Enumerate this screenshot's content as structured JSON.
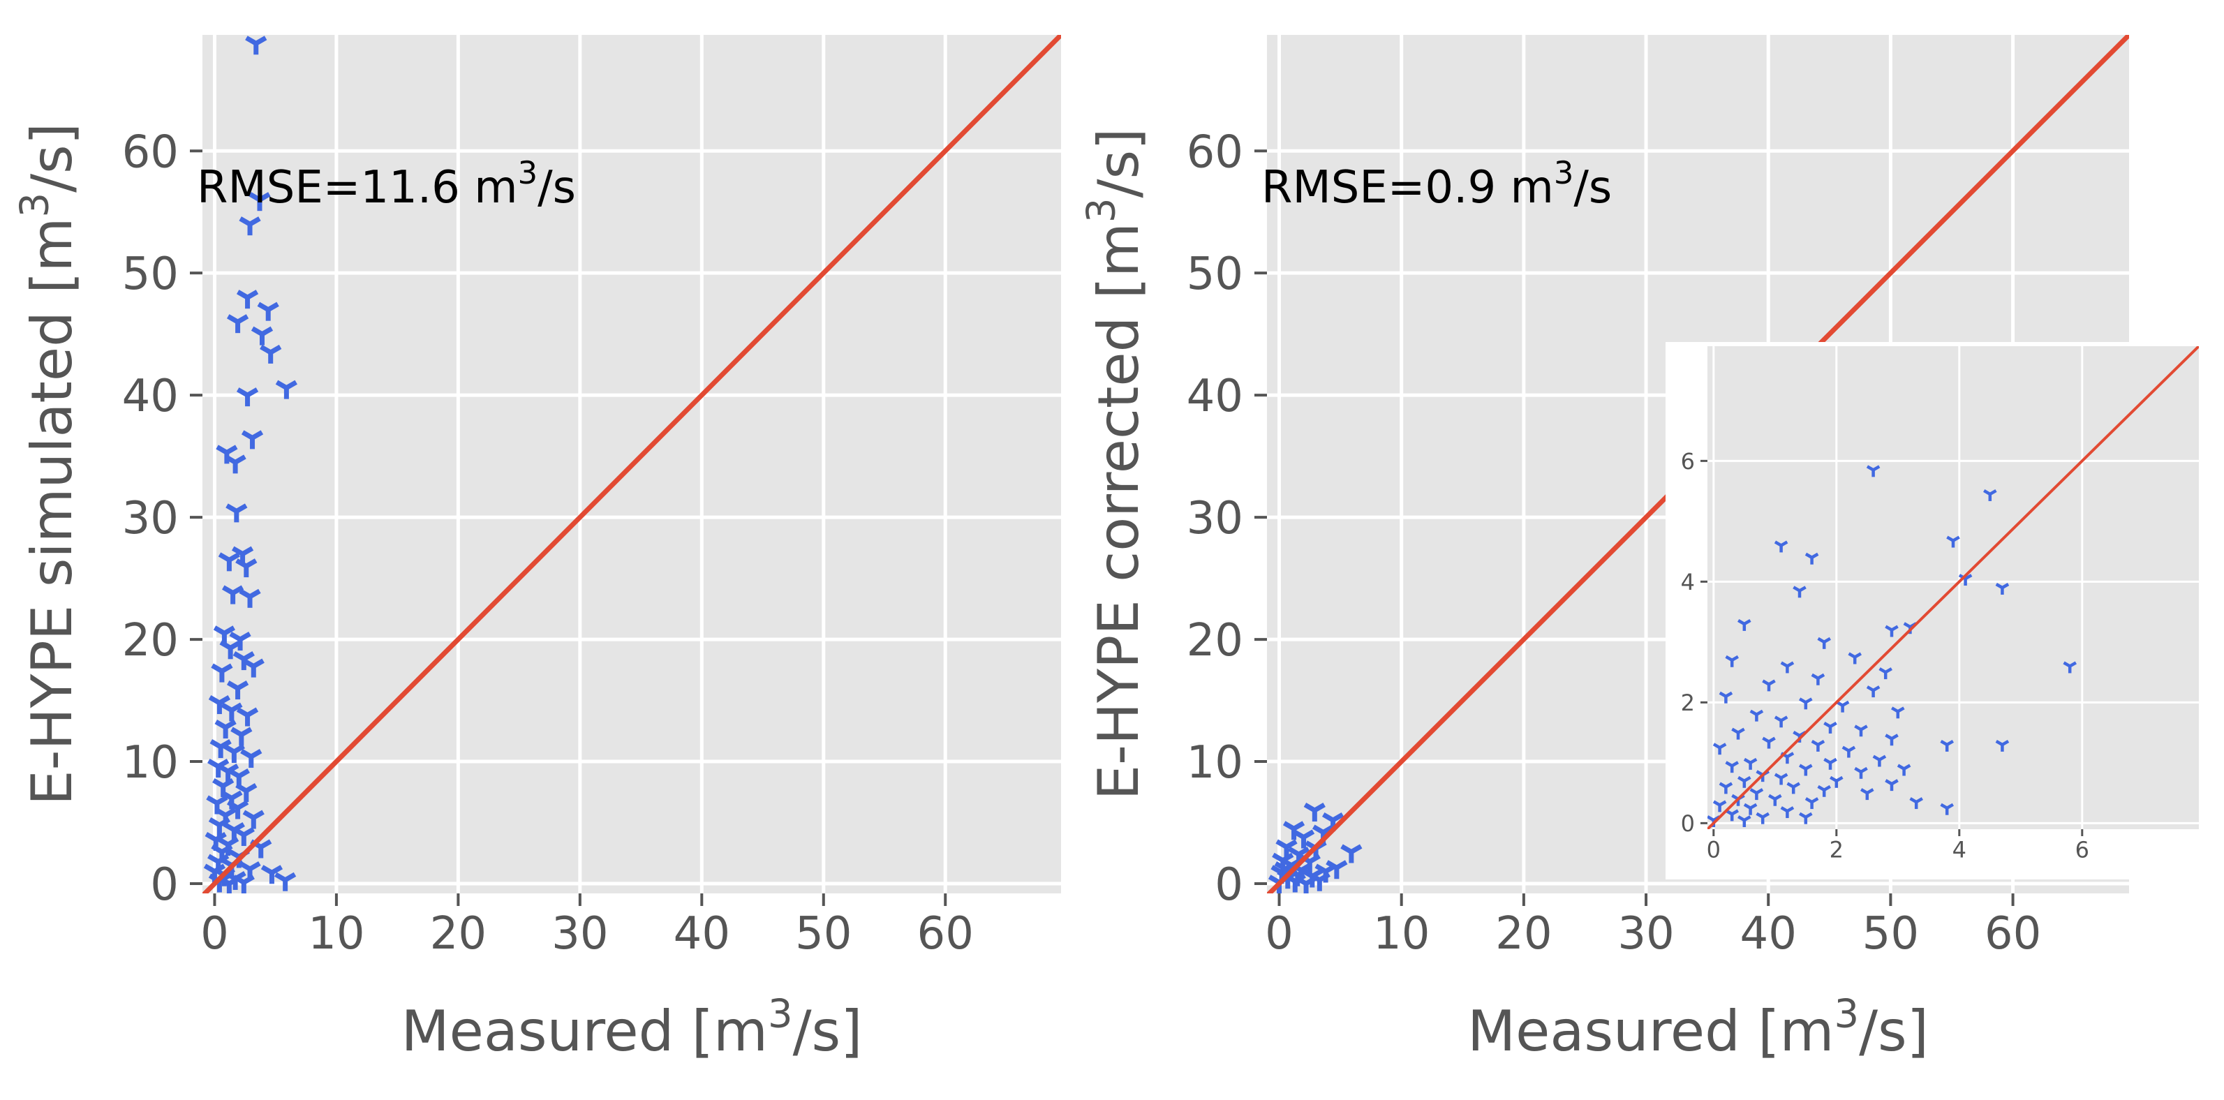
{
  "chart_data": [
    {
      "type": "scatter",
      "xlabel": "Measured [m³/s]",
      "ylabel": "E-HYPE simulated [m³/s]",
      "annotation": "RMSE=11.6 m³/s",
      "xlim": [
        -1,
        69.5
      ],
      "ylim": [
        -0.8,
        69.5
      ],
      "xticks": [
        0,
        10,
        20,
        30,
        40,
        50,
        60
      ],
      "yticks": [
        0,
        10,
        20,
        30,
        40,
        50,
        60
      ],
      "grid": true,
      "reference_line": {
        "x": [
          -1,
          69.5
        ],
        "y": [
          -1,
          69.5
        ],
        "color": "#E24A33"
      },
      "marker_color": "#4169E1",
      "points": [
        {
          "x": 3.4,
          "y": 68.8
        },
        {
          "x": 3.7,
          "y": 56.0
        },
        {
          "x": 2.9,
          "y": 54.0
        },
        {
          "x": 2.7,
          "y": 48.0
        },
        {
          "x": 4.4,
          "y": 47.0
        },
        {
          "x": 1.9,
          "y": 46.0
        },
        {
          "x": 3.9,
          "y": 45.0
        },
        {
          "x": 4.6,
          "y": 43.5
        },
        {
          "x": 5.9,
          "y": 40.6
        },
        {
          "x": 2.7,
          "y": 40.0
        },
        {
          "x": 3.1,
          "y": 36.5
        },
        {
          "x": 1.0,
          "y": 35.3
        },
        {
          "x": 1.7,
          "y": 34.5
        },
        {
          "x": 1.8,
          "y": 30.5
        },
        {
          "x": 2.3,
          "y": 27.0
        },
        {
          "x": 1.2,
          "y": 26.5
        },
        {
          "x": 2.6,
          "y": 26.0
        },
        {
          "x": 1.5,
          "y": 23.8
        },
        {
          "x": 2.9,
          "y": 23.5
        },
        {
          "x": 0.8,
          "y": 20.5
        },
        {
          "x": 2.1,
          "y": 20.0
        },
        {
          "x": 1.3,
          "y": 19.3
        },
        {
          "x": 2.4,
          "y": 18.4
        },
        {
          "x": 0.6,
          "y": 17.4
        },
        {
          "x": 3.2,
          "y": 17.8
        },
        {
          "x": 1.9,
          "y": 16.0
        },
        {
          "x": 0.4,
          "y": 14.8
        },
        {
          "x": 1.4,
          "y": 14.2
        },
        {
          "x": 2.7,
          "y": 13.8
        },
        {
          "x": 0.9,
          "y": 12.8
        },
        {
          "x": 2.2,
          "y": 12.2
        },
        {
          "x": 0.5,
          "y": 11.2
        },
        {
          "x": 1.6,
          "y": 10.8
        },
        {
          "x": 3.0,
          "y": 10.4
        },
        {
          "x": 0.3,
          "y": 9.6
        },
        {
          "x": 1.1,
          "y": 9.2
        },
        {
          "x": 2.0,
          "y": 8.8
        },
        {
          "x": 0.7,
          "y": 8.0
        },
        {
          "x": 2.6,
          "y": 7.6
        },
        {
          "x": 1.4,
          "y": 7.0
        },
        {
          "x": 0.2,
          "y": 6.6
        },
        {
          "x": 1.9,
          "y": 6.2
        },
        {
          "x": 0.9,
          "y": 5.6
        },
        {
          "x": 3.2,
          "y": 5.4
        },
        {
          "x": 0.4,
          "y": 4.8
        },
        {
          "x": 1.6,
          "y": 4.4
        },
        {
          "x": 2.4,
          "y": 4.0
        },
        {
          "x": 0.1,
          "y": 3.6
        },
        {
          "x": 1.1,
          "y": 3.2
        },
        {
          "x": 3.8,
          "y": 3.0
        },
        {
          "x": 0.6,
          "y": 2.6
        },
        {
          "x": 2.0,
          "y": 2.2
        },
        {
          "x": 0.3,
          "y": 1.8
        },
        {
          "x": 1.4,
          "y": 1.5
        },
        {
          "x": 2.9,
          "y": 1.2
        },
        {
          "x": 0.0,
          "y": 1.0
        },
        {
          "x": 0.8,
          "y": 0.7
        },
        {
          "x": 4.7,
          "y": 0.9
        },
        {
          "x": 1.7,
          "y": 0.4
        },
        {
          "x": 0.4,
          "y": 0.2
        },
        {
          "x": 5.8,
          "y": 0.3
        },
        {
          "x": 2.4,
          "y": 0.1
        },
        {
          "x": 1.2,
          "y": 0.0
        }
      ]
    },
    {
      "type": "scatter",
      "xlabel": "Measured [m³/s]",
      "ylabel": "E-HYPE corrected [m³/s]",
      "annotation": "RMSE=0.9 m³/s",
      "xlim": [
        -1,
        69.5
      ],
      "ylim": [
        -0.8,
        69.5
      ],
      "xticks": [
        0,
        10,
        20,
        30,
        40,
        50,
        60
      ],
      "yticks": [
        0,
        10,
        20,
        30,
        40,
        50,
        60
      ],
      "grid": true,
      "reference_line": {
        "x": [
          -1,
          69.5
        ],
        "y": [
          -1,
          69.5
        ],
        "color": "#E24A33"
      },
      "marker_color": "#4169E1",
      "points": [
        {
          "x": 2.9,
          "y": 6.0
        },
        {
          "x": 4.4,
          "y": 5.2
        },
        {
          "x": 1.2,
          "y": 4.5
        },
        {
          "x": 3.6,
          "y": 4.2
        },
        {
          "x": 5.9,
          "y": 2.6
        },
        {
          "x": 2.0,
          "y": 3.8
        },
        {
          "x": 0.6,
          "y": 3.0
        },
        {
          "x": 3.0,
          "y": 2.9
        },
        {
          "x": 4.7,
          "y": 1.3
        },
        {
          "x": 1.6,
          "y": 2.4
        },
        {
          "x": 0.3,
          "y": 1.9
        },
        {
          "x": 2.5,
          "y": 1.8
        },
        {
          "x": 1.0,
          "y": 1.5
        },
        {
          "x": 3.8,
          "y": 1.0
        },
        {
          "x": 0.2,
          "y": 0.9
        },
        {
          "x": 1.8,
          "y": 1.1
        },
        {
          "x": 2.7,
          "y": 0.6
        },
        {
          "x": 0.7,
          "y": 0.5
        },
        {
          "x": 3.3,
          "y": 0.3
        },
        {
          "x": 1.3,
          "y": 0.2
        },
        {
          "x": 0.0,
          "y": 0.1
        },
        {
          "x": 2.2,
          "y": 0.0
        },
        {
          "x": 0.5,
          "y": 1.2
        },
        {
          "x": 1.5,
          "y": 0.7
        }
      ],
      "inset": {
        "xlim": [
          -0.1,
          7.9
        ],
        "ylim": [
          -0.1,
          7.9
        ],
        "xticks": [
          0,
          2,
          4,
          6
        ],
        "yticks": [
          0,
          2,
          4,
          6
        ],
        "grid": true,
        "points": [
          {
            "x": 2.6,
            "y": 5.85
          },
          {
            "x": 4.5,
            "y": 5.45
          },
          {
            "x": 3.9,
            "y": 4.68
          },
          {
            "x": 1.1,
            "y": 4.6
          },
          {
            "x": 1.6,
            "y": 4.4
          },
          {
            "x": 4.1,
            "y": 4.05
          },
          {
            "x": 4.7,
            "y": 3.9
          },
          {
            "x": 1.4,
            "y": 3.85
          },
          {
            "x": 0.5,
            "y": 3.3
          },
          {
            "x": 2.9,
            "y": 3.2
          },
          {
            "x": 3.2,
            "y": 3.25
          },
          {
            "x": 1.8,
            "y": 3.0
          },
          {
            "x": 2.3,
            "y": 2.75
          },
          {
            "x": 5.8,
            "y": 2.6
          },
          {
            "x": 0.3,
            "y": 2.7
          },
          {
            "x": 1.2,
            "y": 2.6
          },
          {
            "x": 2.8,
            "y": 2.5
          },
          {
            "x": 1.7,
            "y": 2.4
          },
          {
            "x": 0.9,
            "y": 2.3
          },
          {
            "x": 2.6,
            "y": 2.2
          },
          {
            "x": 0.2,
            "y": 2.1
          },
          {
            "x": 1.5,
            "y": 2.0
          },
          {
            "x": 2.1,
            "y": 1.95
          },
          {
            "x": 3.0,
            "y": 1.85
          },
          {
            "x": 0.7,
            "y": 1.8
          },
          {
            "x": 1.1,
            "y": 1.7
          },
          {
            "x": 1.9,
            "y": 1.6
          },
          {
            "x": 2.4,
            "y": 1.55
          },
          {
            "x": 0.4,
            "y": 1.5
          },
          {
            "x": 1.4,
            "y": 1.45
          },
          {
            "x": 2.9,
            "y": 1.4
          },
          {
            "x": 0.9,
            "y": 1.35
          },
          {
            "x": 1.7,
            "y": 1.3
          },
          {
            "x": 3.8,
            "y": 1.3
          },
          {
            "x": 4.7,
            "y": 1.3
          },
          {
            "x": 0.1,
            "y": 1.25
          },
          {
            "x": 2.2,
            "y": 1.2
          },
          {
            "x": 1.2,
            "y": 1.1
          },
          {
            "x": 2.7,
            "y": 1.05
          },
          {
            "x": 0.6,
            "y": 1.0
          },
          {
            "x": 1.9,
            "y": 1.0
          },
          {
            "x": 3.1,
            "y": 0.9
          },
          {
            "x": 0.3,
            "y": 0.95
          },
          {
            "x": 1.5,
            "y": 0.9
          },
          {
            "x": 2.4,
            "y": 0.85
          },
          {
            "x": 0.8,
            "y": 0.8
          },
          {
            "x": 1.1,
            "y": 0.75
          },
          {
            "x": 2.0,
            "y": 0.7
          },
          {
            "x": 0.5,
            "y": 0.7
          },
          {
            "x": 2.9,
            "y": 0.65
          },
          {
            "x": 1.3,
            "y": 0.6
          },
          {
            "x": 0.2,
            "y": 0.6
          },
          {
            "x": 1.8,
            "y": 0.55
          },
          {
            "x": 2.5,
            "y": 0.5
          },
          {
            "x": 0.7,
            "y": 0.5
          },
          {
            "x": 0.4,
            "y": 0.4
          },
          {
            "x": 1.0,
            "y": 0.4
          },
          {
            "x": 1.6,
            "y": 0.35
          },
          {
            "x": 3.3,
            "y": 0.35
          },
          {
            "x": 0.1,
            "y": 0.3
          },
          {
            "x": 0.6,
            "y": 0.25
          },
          {
            "x": 1.2,
            "y": 0.2
          },
          {
            "x": 3.8,
            "y": 0.25
          },
          {
            "x": 0.3,
            "y": 0.15
          },
          {
            "x": 0.8,
            "y": 0.1
          },
          {
            "x": 0.0,
            "y": 0.05
          },
          {
            "x": 0.5,
            "y": 0.05
          },
          {
            "x": 1.5,
            "y": 0.1
          }
        ]
      }
    }
  ]
}
